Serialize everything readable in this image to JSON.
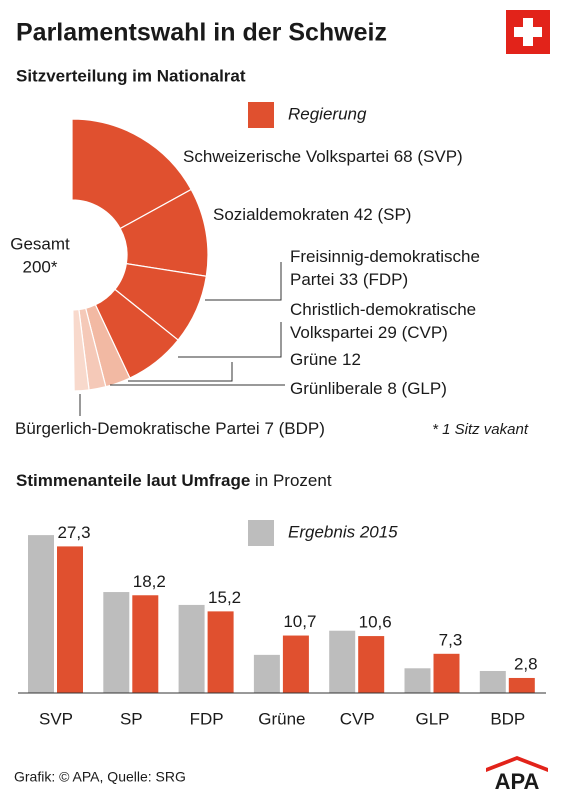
{
  "header": {
    "title": "Parlamentswahl in der Schweiz"
  },
  "chart_data": [
    {
      "type": "half-donut",
      "title": "Sitzverteilung im Nationalrat",
      "legend_label": "Regierung",
      "legend_color": "#e0502f",
      "center_label": "Gesamt",
      "total": {
        "value": 200,
        "label": "200*"
      },
      "note": "* 1 Sitz vakant",
      "slices": [
        {
          "name": [
            "Schweizerische Volkspartei"
          ],
          "value": 68,
          "abbr": "(SVP)",
          "color": "#e0502f"
        },
        {
          "name": [
            "Sozialdemokraten"
          ],
          "value": 42,
          "abbr": "(SP)",
          "color": "#e0502f"
        },
        {
          "name": [
            "Freisinnig-demokratische",
            "Partei"
          ],
          "value": 33,
          "abbr": "(FDP)",
          "color": "#e0502f"
        },
        {
          "name": [
            "Christlich-demokratische",
            "Volkspartei"
          ],
          "value": 29,
          "abbr": "(CVP)",
          "color": "#e0502f"
        },
        {
          "name": [
            "Grüne"
          ],
          "value": 12,
          "color": "#f2b9a3"
        },
        {
          "name": [
            "Grünliberale"
          ],
          "value": 8,
          "abbr": "(GLP)",
          "color": "#f5c9b8"
        },
        {
          "name": [
            "Bürgerlich-Demokratische Partei"
          ],
          "value": 7,
          "abbr": "(BDP)",
          "color": "#f8d9cc"
        }
      ]
    },
    {
      "type": "bar",
      "title": "Stimmenanteile laut Umfrage",
      "subtitle": "in Prozent",
      "categories": [
        "SVP",
        "SP",
        "FDP",
        "Grüne",
        "CVP",
        "GLP",
        "BDP"
      ],
      "series": [
        {
          "name": "Ergebnis 2015",
          "color": "#bdbdbd",
          "values": [
            29.4,
            18.8,
            16.4,
            7.1,
            11.6,
            4.6,
            4.1
          ]
        },
        {
          "color": "#e0502f",
          "values": [
            27.3,
            18.2,
            15.2,
            10.7,
            10.6,
            7.3,
            2.8
          ],
          "value_labels": [
            "27,3",
            "18,2",
            "15,2",
            "10,7",
            "10,6",
            "7,3",
            "2,8"
          ]
        }
      ]
    }
  ],
  "footer": {
    "source": "Grafik: © APA, Quelle: SRG",
    "logo": "APA"
  }
}
